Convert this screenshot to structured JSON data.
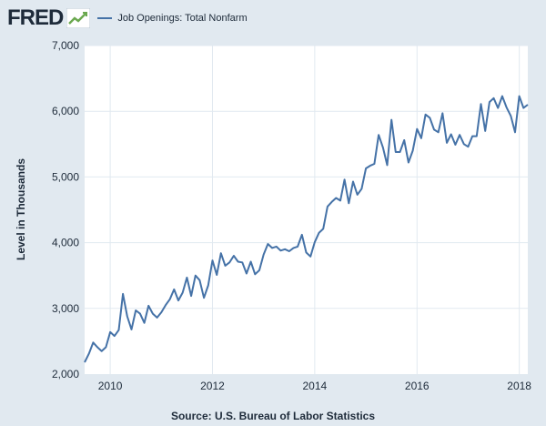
{
  "brand": {
    "logo_text": "FRED",
    "logo_icon": "chart-line-icon"
  },
  "legend": {
    "series_label": "Job Openings: Total Nonfarm",
    "color": "#4572a7"
  },
  "source": "Source: U.S. Bureau of Labor Statistics",
  "chart_data": {
    "type": "line",
    "title": "",
    "xlabel": "",
    "ylabel": "Level in Thousands",
    "ylim": [
      2000,
      7000
    ],
    "yticks": [
      2000,
      3000,
      4000,
      5000,
      6000,
      7000
    ],
    "ytick_labels": [
      "2,000",
      "3,000",
      "4,000",
      "5,000",
      "6,000",
      "7,000"
    ],
    "xlim": [
      "2009-07",
      "2018-03"
    ],
    "xticks": [
      "2010-01",
      "2012-01",
      "2014-01",
      "2016-01",
      "2018-01"
    ],
    "xtick_labels": [
      "2010",
      "2012",
      "2014",
      "2016",
      "2018"
    ],
    "grid": true,
    "legend_position": "top-left",
    "series": [
      {
        "name": "Job Openings: Total Nonfarm",
        "color": "#4572a7",
        "x": [
          "2009-07",
          "2009-08",
          "2009-09",
          "2009-10",
          "2009-11",
          "2009-12",
          "2010-01",
          "2010-02",
          "2010-03",
          "2010-04",
          "2010-05",
          "2010-06",
          "2010-07",
          "2010-08",
          "2010-09",
          "2010-10",
          "2010-11",
          "2010-12",
          "2011-01",
          "2011-02",
          "2011-03",
          "2011-04",
          "2011-05",
          "2011-06",
          "2011-07",
          "2011-08",
          "2011-09",
          "2011-10",
          "2011-11",
          "2011-12",
          "2012-01",
          "2012-02",
          "2012-03",
          "2012-04",
          "2012-05",
          "2012-06",
          "2012-07",
          "2012-08",
          "2012-09",
          "2012-10",
          "2012-11",
          "2012-12",
          "2013-01",
          "2013-02",
          "2013-03",
          "2013-04",
          "2013-05",
          "2013-06",
          "2013-07",
          "2013-08",
          "2013-09",
          "2013-10",
          "2013-11",
          "2013-12",
          "2014-01",
          "2014-02",
          "2014-03",
          "2014-04",
          "2014-05",
          "2014-06",
          "2014-07",
          "2014-08",
          "2014-09",
          "2014-10",
          "2014-11",
          "2014-12",
          "2015-01",
          "2015-02",
          "2015-03",
          "2015-04",
          "2015-05",
          "2015-06",
          "2015-07",
          "2015-08",
          "2015-09",
          "2015-10",
          "2015-11",
          "2015-12",
          "2016-01",
          "2016-02",
          "2016-03",
          "2016-04",
          "2016-05",
          "2016-06",
          "2016-07",
          "2016-08",
          "2016-09",
          "2016-10",
          "2016-11",
          "2016-12",
          "2017-01",
          "2017-02",
          "2017-03",
          "2017-04",
          "2017-05",
          "2017-06",
          "2017-07",
          "2017-08",
          "2017-09",
          "2017-10",
          "2017-11",
          "2017-12",
          "2018-01",
          "2018-02",
          "2018-03"
        ],
        "values": [
          2180,
          2310,
          2480,
          2410,
          2350,
          2410,
          2640,
          2580,
          2670,
          3220,
          2880,
          2680,
          2970,
          2920,
          2780,
          3040,
          2920,
          2860,
          2940,
          3050,
          3140,
          3290,
          3120,
          3240,
          3470,
          3190,
          3500,
          3430,
          3160,
          3350,
          3730,
          3510,
          3840,
          3650,
          3700,
          3800,
          3710,
          3700,
          3530,
          3710,
          3520,
          3580,
          3820,
          3980,
          3920,
          3940,
          3880,
          3900,
          3870,
          3920,
          3940,
          4120,
          3850,
          3790,
          4010,
          4150,
          4210,
          4550,
          4620,
          4680,
          4640,
          4960,
          4600,
          4930,
          4730,
          4820,
          5130,
          5170,
          5200,
          5640,
          5450,
          5180,
          5870,
          5380,
          5380,
          5560,
          5220,
          5400,
          5730,
          5590,
          5950,
          5900,
          5720,
          5680,
          5970,
          5520,
          5650,
          5490,
          5640,
          5500,
          5460,
          5620,
          5620,
          6110,
          5700,
          6140,
          6200,
          6050,
          6230,
          6060,
          5930,
          5680,
          6230,
          6050,
          6100
        ]
      }
    ]
  }
}
